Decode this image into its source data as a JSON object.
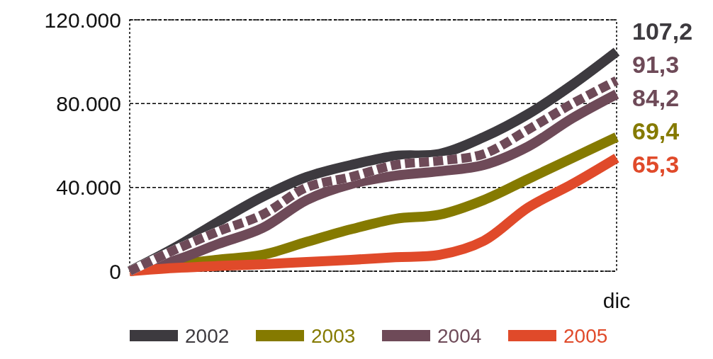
{
  "chart_data": {
    "type": "line",
    "categories": [
      null,
      null,
      null,
      null,
      null,
      null,
      null,
      null,
      null,
      null,
      null,
      "dic"
    ],
    "ylim": [
      0,
      120000
    ],
    "yticks": [
      0,
      {
        "value": 40000,
        "label": "40.000"
      },
      {
        "value": 80000,
        "label": "80.000"
      },
      {
        "value": 120000,
        "label": "120.000"
      }
    ],
    "grid": "y",
    "legend": "bottom",
    "line_style": "solid",
    "series": [
      {
        "name": "2002",
        "color": "#3d3a3f",
        "values": [
          0,
          11000,
          23600,
          35500,
          45000,
          50700,
          55000,
          56000,
          64000,
          75000,
          89000,
          104800
        ]
      },
      {
        "name": "2003",
        "color": "#857a00",
        "values": [
          0,
          3000,
          5500,
          7800,
          14000,
          20000,
          25000,
          27000,
          34000,
          44000,
          54000,
          64000
        ]
      },
      {
        "name": "2004",
        "color": "#6e4a58",
        "values": [
          0,
          5000,
          13000,
          20600,
          34000,
          41600,
          45600,
          47700,
          50700,
          59500,
          73000,
          84500
        ]
      },
      {
        "name": "2005",
        "color": "#e04a2a",
        "values": [
          0,
          1500,
          2500,
          3300,
          4400,
          5400,
          6700,
          7800,
          14500,
          30400,
          41600,
          54000
        ]
      },
      {
        "color": "#6e4a58",
        "line_style": "dashed",
        "values": [
          0,
          10000,
          19000,
          27000,
          40000,
          45000,
          50700,
          52700,
          56000,
          67600,
          80000,
          91000
        ]
      }
    ],
    "annotations": [
      "107,2",
      "91,3",
      "84,2",
      "69,4",
      "65,3"
    ]
  }
}
